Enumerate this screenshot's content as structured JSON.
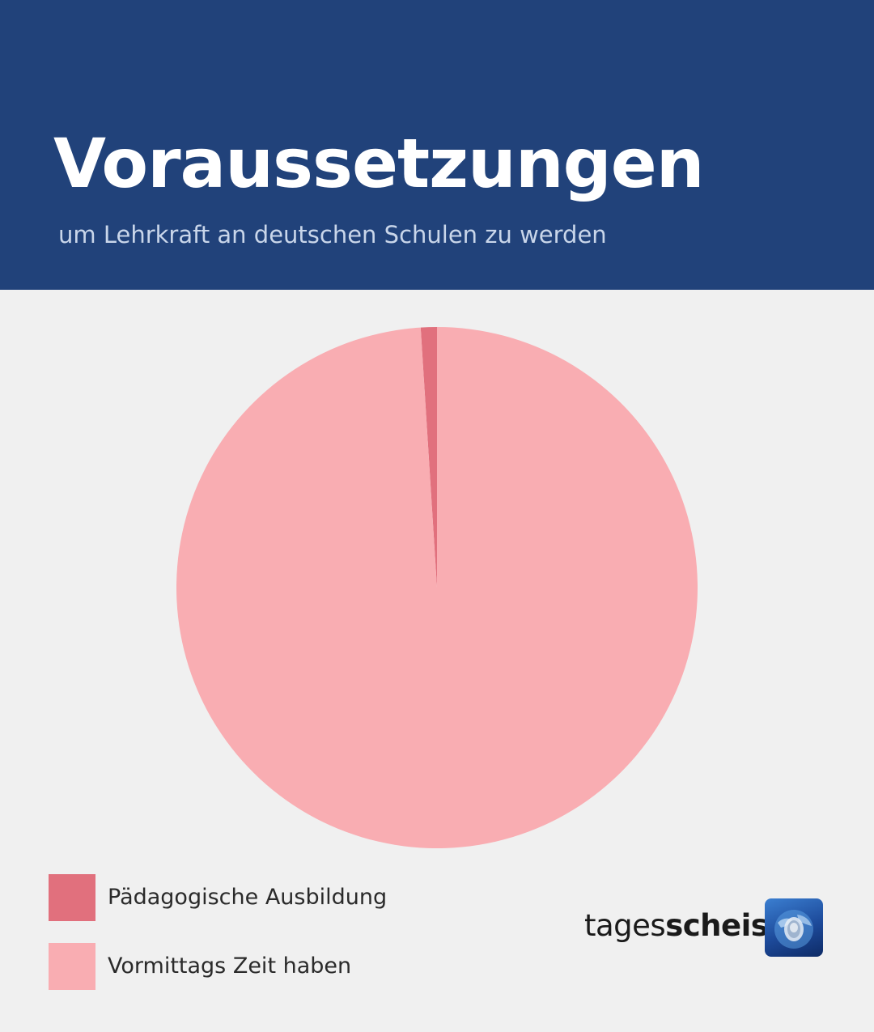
{
  "header": {
    "title": "Voraussetzungen",
    "subtitle": "um Lehrkraft an deutschen Schulen zu werden"
  },
  "chart_data": {
    "type": "pie",
    "categories": [
      "Pädagogische Ausbildung",
      "Vormittags Zeit haben"
    ],
    "values": [
      1,
      99
    ],
    "colors": [
      "#e1707d",
      "#f9adb2"
    ],
    "start_angle_deg": 0,
    "direction": "counterclockwise",
    "legend_position": "bottom-left"
  },
  "legend": {
    "items": [
      {
        "label": "Pädagogische Ausbildung",
        "color": "#e1707d"
      },
      {
        "label": "Vormittags Zeit haben",
        "color": "#f9adb2"
      }
    ]
  },
  "logo": {
    "text_regular": "tages",
    "text_bold": "scheiss",
    "icon": "tagesschau-globe-icon",
    "colors": {
      "header_bg": "#21427a",
      "page_bg": "#f0f0f0"
    }
  }
}
